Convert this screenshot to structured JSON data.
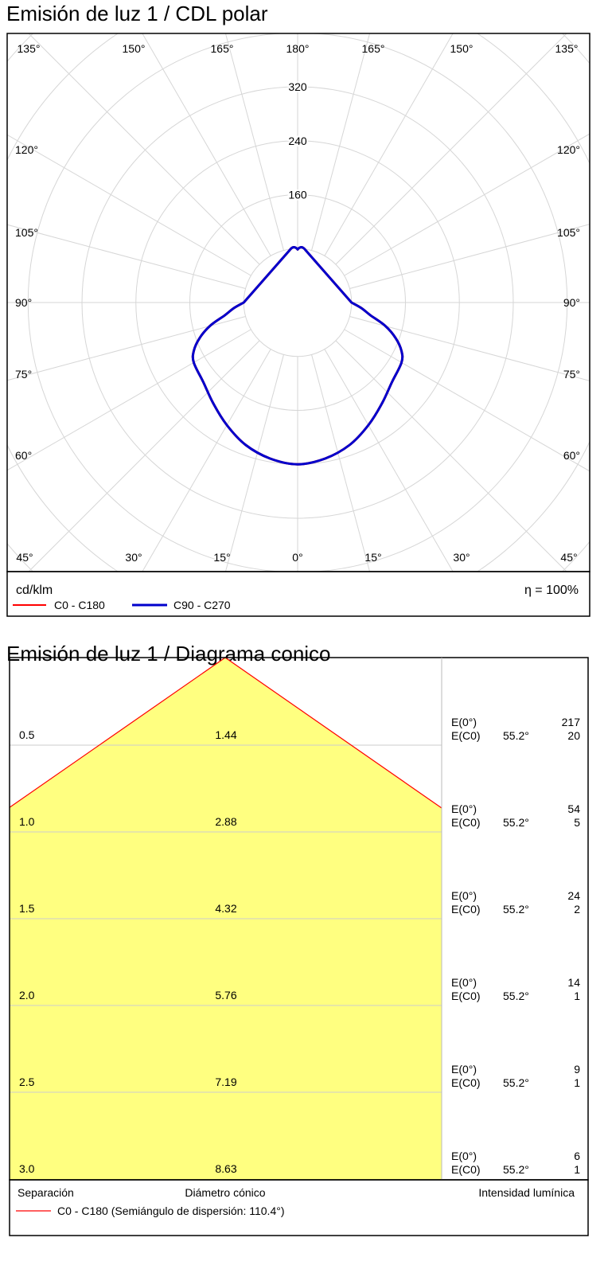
{
  "polar": {
    "title": "Emisión de luz 1 / CDL polar",
    "unit_label": "cd/klm",
    "efficiency_label": "η = 100%",
    "legend": [
      {
        "label": "C0 - C180",
        "color": "#ff0000"
      },
      {
        "label": "C90 - C270",
        "color": "#0000cc"
      }
    ],
    "angle_labels_top": [
      "135°",
      "150°",
      "165°",
      "180°",
      "165°",
      "150°",
      "135°"
    ],
    "angle_labels_side_left": [
      "120°",
      "105°",
      "90°",
      "75°",
      "60°"
    ],
    "angle_labels_side_right": [
      "120°",
      "105°",
      "90°",
      "75°",
      "60°"
    ],
    "angle_labels_bottom": [
      "45°",
      "30°",
      "15°",
      "0°",
      "15°",
      "30°",
      "45°"
    ],
    "radial_labels": [
      "160",
      "240",
      "320"
    ]
  },
  "cone": {
    "title": "Emisión de luz 1 / Diagrama conico",
    "col_separation": "Separación",
    "col_diameter": "Diámetro cónico",
    "col_intensity": "Intensidad lumínica",
    "legend_label": "C0 - C180 (Semiángulo de dispersión: 110.4°)",
    "legend_color": "#ff0000",
    "e0_label": "E(0°)",
    "ec0_label": "E(C0)",
    "angle_text": "55.2°",
    "rows": [
      {
        "sep": "0.5",
        "diam": "1.44",
        "e0": "217",
        "ec0": "20"
      },
      {
        "sep": "1.0",
        "diam": "2.88",
        "e0": "54",
        "ec0": "5"
      },
      {
        "sep": "1.5",
        "diam": "4.32",
        "e0": "24",
        "ec0": "2"
      },
      {
        "sep": "2.0",
        "diam": "5.76",
        "e0": "14",
        "ec0": "1"
      },
      {
        "sep": "2.5",
        "diam": "7.19",
        "e0": "9",
        "ec0": "1"
      },
      {
        "sep": "3.0",
        "diam": "8.63",
        "e0": "6",
        "ec0": "1"
      }
    ]
  },
  "chart_data": [
    {
      "type": "line",
      "subtype": "polar",
      "title": "Emisión de luz 1 / CDL polar",
      "unit": "cd/klm",
      "radial_ticks": [
        80,
        160,
        240,
        320
      ],
      "angular_ticks_deg": [
        0,
        15,
        30,
        45,
        60,
        75,
        90,
        105,
        120,
        135,
        150,
        165,
        180
      ],
      "series": [
        {
          "name": "C90 - C270",
          "color": "#0000cc",
          "gamma_deg": [
            0,
            10,
            20,
            30,
            40,
            50,
            60,
            65,
            70,
            75,
            80,
            85,
            90
          ],
          "values": [
            240,
            235,
            225,
            210,
            195,
            183,
            178,
            170,
            155,
            135,
            110,
            95,
            80
          ]
        },
        {
          "name": "C0 - C180",
          "color": "#ff0000",
          "gamma_deg": [
            0,
            10,
            20,
            30,
            40,
            50,
            60,
            65,
            70,
            75,
            80,
            85,
            90
          ],
          "values": [
            240,
            235,
            225,
            210,
            195,
            183,
            178,
            170,
            155,
            135,
            110,
            95,
            80
          ]
        }
      ]
    },
    {
      "type": "table",
      "title": "Emisión de luz 1 / Diagrama conico",
      "half_angle_deg": 55.2,
      "columns": [
        "Separación",
        "Diámetro cónico",
        "E(0°)",
        "E(C0)"
      ],
      "rows": [
        [
          0.5,
          1.44,
          217,
          20
        ],
        [
          1.0,
          2.88,
          54,
          5
        ],
        [
          1.5,
          4.32,
          24,
          2
        ],
        [
          2.0,
          5.76,
          14,
          1
        ],
        [
          2.5,
          7.19,
          9,
          1
        ],
        [
          3.0,
          8.63,
          6,
          1
        ]
      ]
    }
  ]
}
